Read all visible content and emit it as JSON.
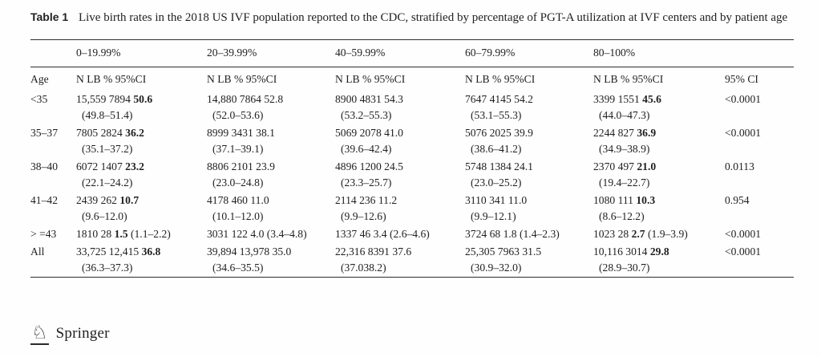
{
  "document": {
    "table_label": "Table 1",
    "caption": "Live birth rates in the 2018 US IVF population reported to the CDC, stratified by percentage of PGT-A utilization at IVF centers and by patient age"
  },
  "table": {
    "band_headers": [
      "0–19.99%",
      "20–39.99%",
      "40–59.99%",
      "60–79.99%",
      "80–100%"
    ],
    "col_headers": {
      "age": "Age",
      "stat": "N LB % 95%CI",
      "pcol": "95% CI"
    },
    "rows": [
      {
        "age": "<35",
        "p": "<0.0001",
        "cells": [
          {
            "n": "15,559 7894",
            "rate": "50.6",
            "bold": true,
            "ci": "(49.8–51.4)"
          },
          {
            "n": "14,880 7864",
            "rate": "52.8",
            "bold": false,
            "ci": "(52.0–53.6)"
          },
          {
            "n": "8900 4831",
            "rate": "54.3",
            "bold": false,
            "ci": "(53.2–55.3)"
          },
          {
            "n": "7647 4145",
            "rate": "54.2",
            "bold": false,
            "ci": "(53.1–55.3)"
          },
          {
            "n": "3399 1551",
            "rate": "45.6",
            "bold": true,
            "ci": "(44.0–47.3)"
          }
        ]
      },
      {
        "age": "35–37",
        "p": "<0.0001",
        "cells": [
          {
            "n": "7805 2824",
            "rate": "36.2",
            "bold": true,
            "ci": "(35.1–37.2)"
          },
          {
            "n": "8999 3431",
            "rate": "38.1",
            "bold": false,
            "ci": "(37.1–39.1)"
          },
          {
            "n": "5069 2078",
            "rate": "41.0",
            "bold": false,
            "ci": "(39.6–42.4)"
          },
          {
            "n": "5076 2025",
            "rate": "39.9",
            "bold": false,
            "ci": "(38.6–41.2)"
          },
          {
            "n": "2244 827",
            "rate": "36.9",
            "bold": true,
            "ci": "(34.9–38.9)"
          }
        ]
      },
      {
        "age": "38–40",
        "p": "0.0113",
        "cells": [
          {
            "n": "6072 1407",
            "rate": "23.2",
            "bold": true,
            "ci": "(22.1–24.2)"
          },
          {
            "n": "8806 2101",
            "rate": "23.9",
            "bold": false,
            "ci": "(23.0–24.8)"
          },
          {
            "n": "4896 1200",
            "rate": "24.5",
            "bold": false,
            "ci": "(23.3–25.7)"
          },
          {
            "n": "5748 1384",
            "rate": "24.1",
            "bold": false,
            "ci": "(23.0–25.2)"
          },
          {
            "n": "2370 497",
            "rate": "21.0",
            "bold": true,
            "ci": "(19.4–22.7)"
          }
        ]
      },
      {
        "age": "41–42",
        "p": "0.954",
        "cells": [
          {
            "n": "2439 262",
            "rate": "10.7",
            "bold": true,
            "ci": "(9.6–12.0)"
          },
          {
            "n": "4178 460",
            "rate": "11.0",
            "bold": false,
            "ci": "(10.1–12.0)"
          },
          {
            "n": "2114 236",
            "rate": "11.2",
            "bold": false,
            "ci": "(9.9–12.6)"
          },
          {
            "n": "3110 341",
            "rate": "11.0",
            "bold": false,
            "ci": "(9.9–12.1)"
          },
          {
            "n": "1080 111",
            "rate": "10.3",
            "bold": true,
            "ci": "(8.6–12.2)"
          }
        ]
      },
      {
        "age": "> =43",
        "p": "<0.0001",
        "cells": [
          {
            "n": "1810 28",
            "rate": "1.5",
            "bold": true,
            "ci": "(1.1–2.2)",
            "inline_ci": true
          },
          {
            "n": "3031 122",
            "rate": "4.0",
            "bold": false,
            "ci": "(3.4–4.8)",
            "inline_ci": true
          },
          {
            "n": "1337 46",
            "rate": "3.4",
            "bold": false,
            "ci": "(2.6–4.6)",
            "inline_ci": true
          },
          {
            "n": "3724 68",
            "rate": "1.8",
            "bold": false,
            "ci": "(1.4–2.3)",
            "inline_ci": true
          },
          {
            "n": "1023 28",
            "rate": "2.7",
            "bold": true,
            "ci": "(1.9–3.9)",
            "inline_ci": true
          }
        ]
      },
      {
        "age": "All",
        "p": "<0.0001",
        "cells": [
          {
            "n": "33,725 12,415",
            "rate": "36.8",
            "bold": true,
            "ci": "(36.3–37.3)"
          },
          {
            "n": "39,894 13,978",
            "rate": "35.0",
            "bold": false,
            "ci": "(34.6–35.5)"
          },
          {
            "n": "22,316 8391",
            "rate": "37.6",
            "bold": false,
            "ci": "(37.038.2)"
          },
          {
            "n": "25,305 7963",
            "rate": "31.5",
            "bold": false,
            "ci": "(30.9–32.0)"
          },
          {
            "n": "10,116 3014",
            "rate": "29.8",
            "bold": true,
            "ci": "(28.9–30.7)"
          }
        ]
      }
    ]
  },
  "footer": {
    "publisher": "Springer",
    "logo_icon": "springer-knight"
  }
}
